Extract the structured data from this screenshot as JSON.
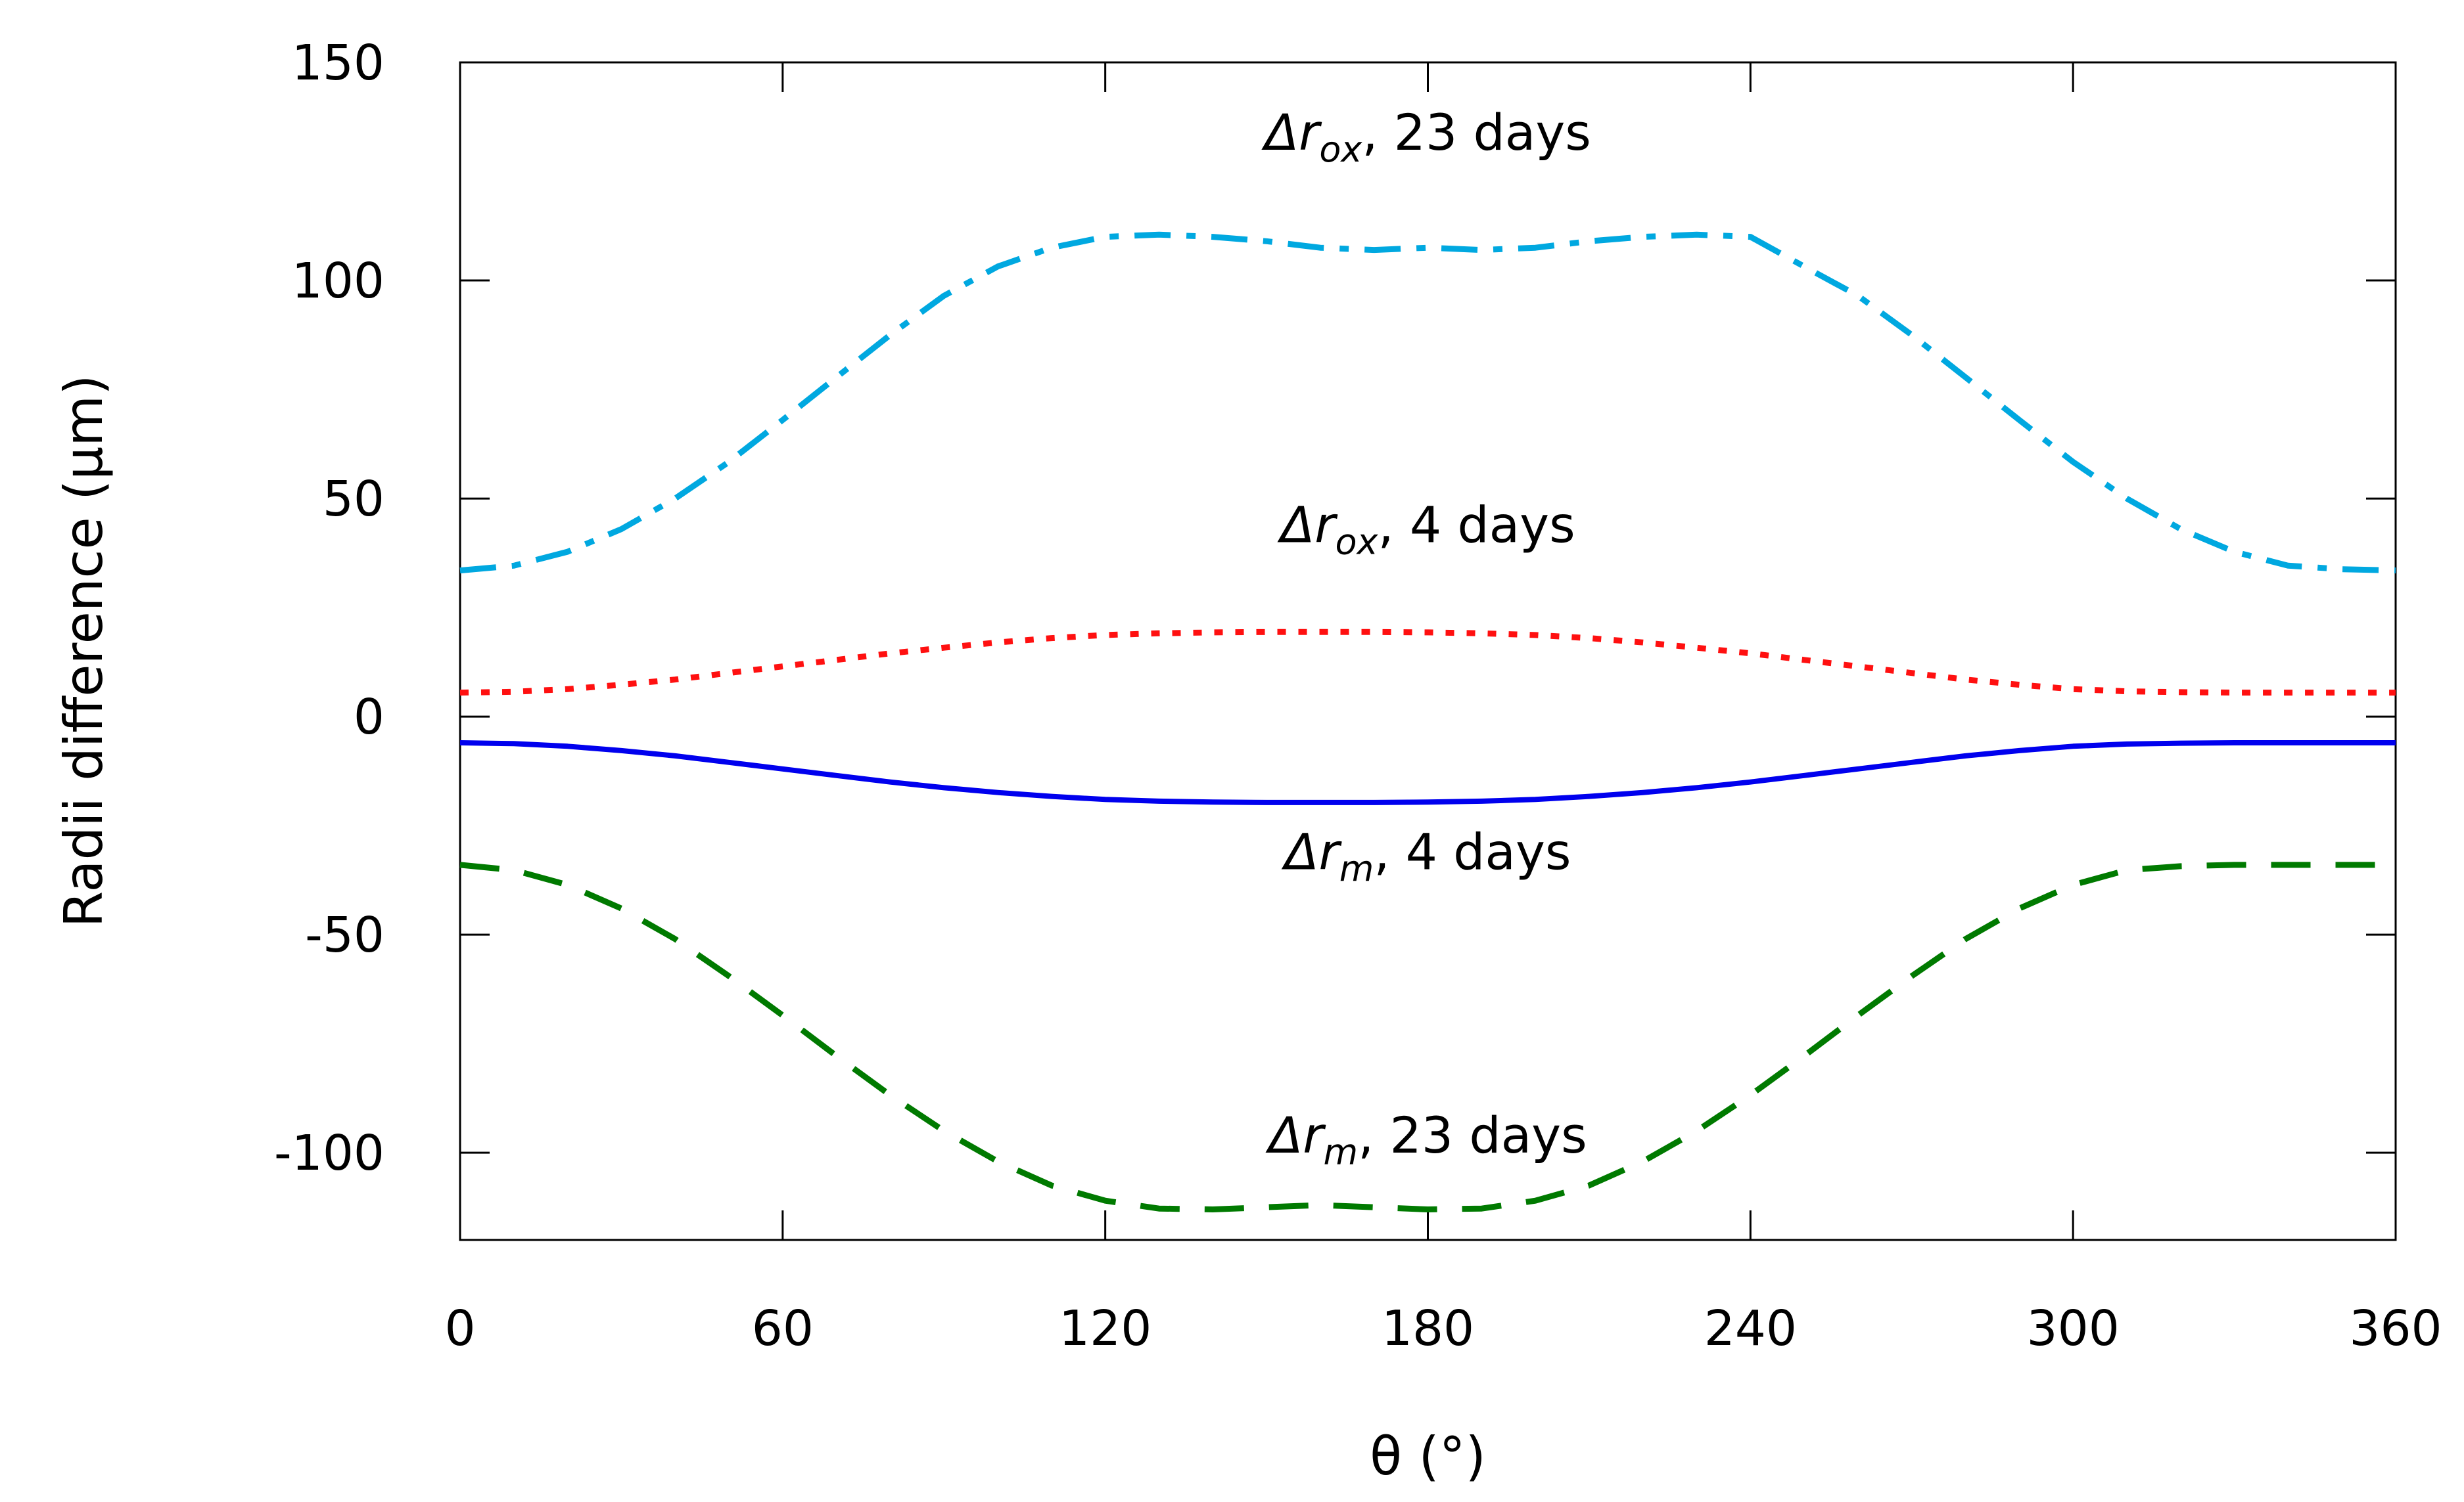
{
  "chart_data": {
    "type": "line",
    "title": "",
    "xlabel": "θ (°)",
    "ylabel": "Radii difference (μm)",
    "xlim": [
      0,
      360
    ],
    "ylim": [
      -120,
      150
    ],
    "xticks": [
      0,
      60,
      120,
      180,
      240,
      300,
      360
    ],
    "yticks": [
      -100,
      -50,
      0,
      50,
      100,
      150
    ],
    "grid": false,
    "x": [
      0,
      10,
      20,
      30,
      40,
      50,
      60,
      70,
      80,
      90,
      100,
      110,
      120,
      130,
      140,
      150,
      160,
      170,
      180,
      190,
      200,
      210,
      220,
      230,
      240,
      250,
      260,
      270,
      280,
      290,
      300,
      310,
      320,
      330,
      340,
      350,
      360
    ],
    "series": [
      {
        "name": "Δr_ox, 23 days",
        "color": "#00a8e0",
        "style": "dash-dot",
        "values": [
          33.5,
          34.6,
          37.8,
          43.0,
          50.0,
          58.4,
          68.0,
          77.8,
          87.5,
          96.5,
          103.2,
          107.5,
          110.0,
          110.5,
          110.0,
          109.0,
          107.5,
          107.0,
          107.5,
          107.0,
          107.5,
          109.0,
          110.0,
          110.5,
          110.0,
          103.2,
          96.5,
          87.5,
          77.8,
          68.0,
          58.4,
          50.0,
          43.0,
          37.8,
          34.6,
          33.8,
          33.5
        ]
      },
      {
        "name": "Δr_ox, 4 days",
        "color": "#ff1010",
        "style": "dotted",
        "values": [
          5.5,
          5.7,
          6.3,
          7.3,
          8.5,
          10.0,
          11.5,
          13.0,
          14.5,
          15.8,
          17.0,
          18.0,
          18.7,
          19.1,
          19.3,
          19.4,
          19.4,
          19.4,
          19.3,
          19.1,
          18.7,
          18.0,
          17.0,
          15.8,
          14.5,
          13.0,
          11.5,
          10.0,
          8.5,
          7.3,
          6.3,
          5.8,
          5.6,
          5.5,
          5.5,
          5.5,
          5.5
        ]
      },
      {
        "name": "Δr_m, 4 days",
        "color": "#0000ee",
        "style": "solid",
        "values": [
          -6.0,
          -6.2,
          -6.8,
          -7.8,
          -9.0,
          -10.5,
          -12.0,
          -13.5,
          -15.0,
          -16.3,
          -17.4,
          -18.3,
          -19.0,
          -19.4,
          -19.6,
          -19.7,
          -19.7,
          -19.7,
          -19.6,
          -19.4,
          -19.0,
          -18.3,
          -17.4,
          -16.3,
          -15.0,
          -13.5,
          -12.0,
          -10.5,
          -9.0,
          -7.8,
          -6.8,
          -6.3,
          -6.1,
          -6.0,
          -6.0,
          -6.0,
          -6.0
        ]
      },
      {
        "name": "Δr_m, 23 days",
        "color": "#007a00",
        "style": "dashed",
        "values": [
          -34.0,
          -35.2,
          -38.6,
          -44.0,
          -51.0,
          -59.5,
          -68.5,
          -77.8,
          -86.8,
          -95.0,
          -102.0,
          -107.5,
          -111.0,
          -112.8,
          -113.0,
          -112.5,
          -112.0,
          -112.5,
          -113.0,
          -112.8,
          -111.0,
          -107.5,
          -102.0,
          -95.0,
          -86.8,
          -77.8,
          -68.5,
          -59.5,
          -51.0,
          -44.0,
          -38.6,
          -35.2,
          -34.3,
          -34.0,
          -34.0,
          -34.0,
          -34.0
        ]
      }
    ],
    "annotations": [
      {
        "base": "Δr",
        "sub": "ox",
        "rest": ", 23 days",
        "x": 180,
        "y": 130
      },
      {
        "base": "Δr",
        "sub": "ox",
        "rest": ", 4 days",
        "x": 180,
        "y": 40
      },
      {
        "base": "Δr",
        "sub": "m",
        "rest": ", 4 days",
        "x": 180,
        "y": -35
      },
      {
        "base": "Δr",
        "sub": "m",
        "rest": ", 23 days",
        "x": 180,
        "y": -100
      }
    ]
  }
}
